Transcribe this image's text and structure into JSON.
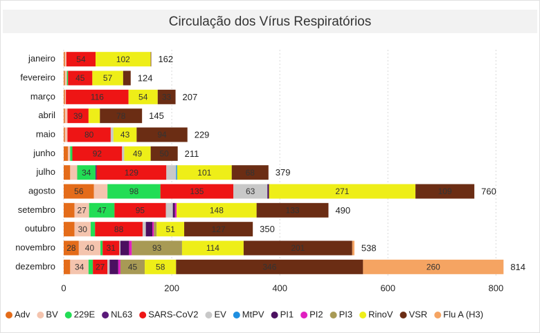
{
  "chart_data": {
    "type": "stacked_bar_horizontal",
    "title": "Circulação dos Vírus Respiratórios",
    "categories": [
      "janeiro",
      "fevereiro",
      "março",
      "abril",
      "maio",
      "junho",
      "julho",
      "agosto",
      "setembro",
      "outubro",
      "novembro",
      "dezembro"
    ],
    "totals": [
      162,
      124,
      207,
      145,
      229,
      211,
      379,
      760,
      490,
      350,
      538,
      814
    ],
    "xlim": [
      0,
      820
    ],
    "xticks": [
      0,
      200,
      400,
      600,
      800
    ],
    "grid": true,
    "legend": "bottom",
    "series": [
      {
        "name": "Adv",
        "color": "#e46c1a",
        "values": [
          2,
          2,
          2,
          2,
          2,
          8,
          12,
          56,
          20,
          20,
          28,
          12
        ]
      },
      {
        "name": "BV",
        "color": "#f4c4ae",
        "values": [
          3,
          4,
          2,
          5,
          5,
          4,
          13,
          25,
          27,
          30,
          40,
          34
        ]
      },
      {
        "name": "229E",
        "color": "#22dd55",
        "values": [
          0,
          2,
          0,
          0,
          0,
          4,
          34,
          98,
          47,
          8,
          4,
          8
        ]
      },
      {
        "name": "NL63",
        "color": "#5a1a7a",
        "values": [
          0,
          0,
          0,
          0,
          0,
          0,
          2,
          0,
          0,
          0,
          0,
          0
        ]
      },
      {
        "name": "SARS-CoV2",
        "color": "#ee1515",
        "values": [
          54,
          45,
          116,
          39,
          80,
          92,
          129,
          135,
          95,
          88,
          31,
          27
        ]
      },
      {
        "name": "EV",
        "color": "#c8c8c8",
        "values": [
          0,
          0,
          0,
          0,
          5,
          4,
          18,
          63,
          13,
          6,
          2,
          4
        ]
      },
      {
        "name": "MtPV",
        "color": "#1f8fe0",
        "values": [
          0,
          0,
          0,
          0,
          0,
          0,
          2,
          0,
          0,
          0,
          0,
          0
        ]
      },
      {
        "name": "PI1",
        "color": "#4b1060",
        "values": [
          0,
          0,
          0,
          0,
          0,
          0,
          0,
          3,
          4,
          12,
          16,
          16
        ]
      },
      {
        "name": "PI2",
        "color": "#e020c0",
        "values": [
          0,
          0,
          0,
          0,
          0,
          0,
          0,
          0,
          3,
          3,
          5,
          4
        ]
      },
      {
        "name": "PI3",
        "color": "#a89a55",
        "values": [
          0,
          0,
          0,
          0,
          0,
          0,
          0,
          0,
          0,
          5,
          93,
          45
        ]
      },
      {
        "name": "RinoV",
        "color": "#eeee18",
        "values": [
          102,
          57,
          54,
          21,
          43,
          49,
          101,
          271,
          148,
          51,
          114,
          58
        ]
      },
      {
        "name": "VSR",
        "color": "#6b2d14",
        "values": [
          1,
          14,
          33,
          78,
          94,
          50,
          68,
          109,
          133,
          127,
          201,
          346
        ]
      },
      {
        "name": "Flu A (H3)",
        "color": "#f5a462",
        "values": [
          0,
          0,
          0,
          0,
          0,
          0,
          0,
          0,
          0,
          0,
          4,
          260
        ]
      }
    ]
  }
}
